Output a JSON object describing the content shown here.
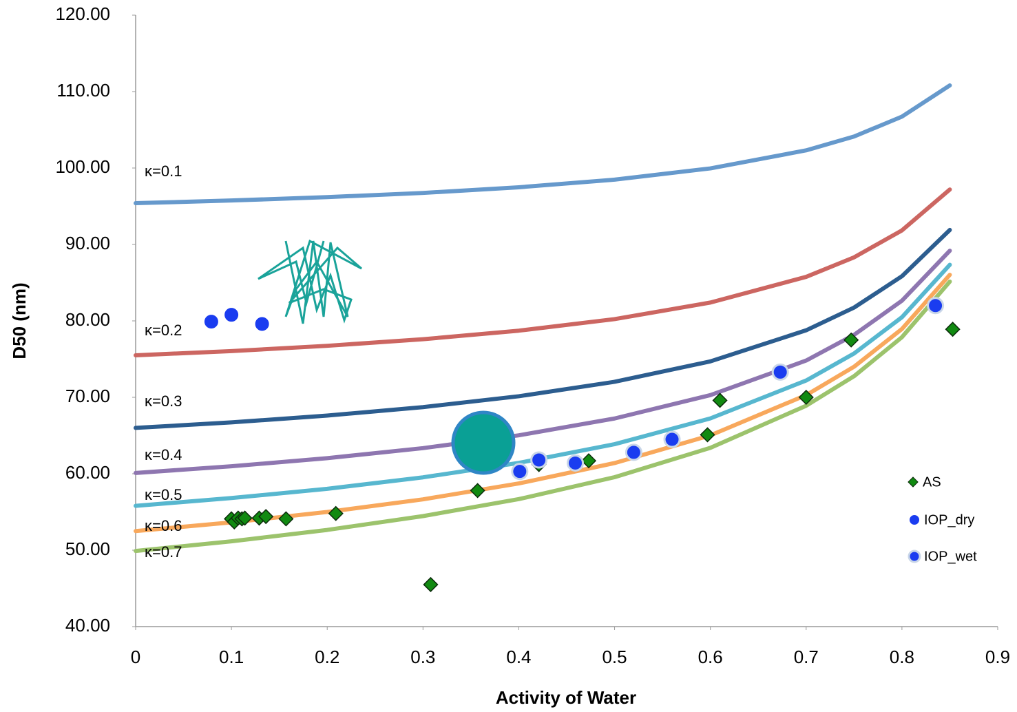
{
  "chart_data": {
    "type": "scatter",
    "xlabel": "Activity of Water",
    "ylabel": "D50 (nm)",
    "xlim": [
      0,
      0.9
    ],
    "xticks": [
      0,
      0.1,
      0.2,
      0.3,
      0.4,
      0.5,
      0.6,
      0.7,
      0.8,
      0.9
    ],
    "ylim": [
      40,
      120
    ],
    "yticks": [
      {
        "value": 40,
        "label": "40.00"
      },
      {
        "value": 50,
        "label": "50.00"
      },
      {
        "value": 60,
        "label": "60.00"
      },
      {
        "value": 70,
        "label": "70.00"
      },
      {
        "value": 80,
        "label": "80.00"
      },
      {
        "value": 90,
        "label": "90.00"
      },
      {
        "value": 100,
        "label": "100.00"
      },
      {
        "value": 110,
        "label": "110.00"
      },
      {
        "value": 120,
        "label": "120.00"
      }
    ],
    "grid": false,
    "legend": "lower right",
    "series": [
      {
        "name": "κ=0.1",
        "type": "line",
        "color": "#6699cc",
        "x": [
          0,
          0.1,
          0.2,
          0.3,
          0.4,
          0.5,
          0.6,
          0.7,
          0.75,
          0.8,
          0.85
        ],
        "values": [
          95.4,
          95.75,
          96.19,
          96.74,
          97.48,
          98.48,
          99.95,
          102.31,
          104.12,
          106.72,
          110.81
        ]
      },
      {
        "name": "κ=0.2",
        "type": "line",
        "color": "#cc6661",
        "x": [
          0,
          0.1,
          0.2,
          0.3,
          0.4,
          0.5,
          0.6,
          0.7,
          0.75,
          0.8,
          0.85
        ],
        "values": [
          75.5,
          76.05,
          76.74,
          77.6,
          78.72,
          80.23,
          82.4,
          85.76,
          88.31,
          91.84,
          97.19
        ]
      },
      {
        "name": "κ=0.3",
        "type": "line",
        "color": "#2c5d8f",
        "x": [
          0,
          0.1,
          0.2,
          0.3,
          0.4,
          0.5,
          0.6,
          0.7,
          0.75,
          0.8,
          0.85
        ],
        "values": [
          66.0,
          66.72,
          67.61,
          68.72,
          70.14,
          72.03,
          74.7,
          78.77,
          81.74,
          85.84,
          91.9
        ]
      },
      {
        "name": "κ=0.4",
        "type": "line",
        "color": "#8e76b0",
        "x": [
          0,
          0.1,
          0.2,
          0.3,
          0.4,
          0.5,
          0.6,
          0.7,
          0.75,
          0.8,
          0.85
        ],
        "values": [
          60.1,
          60.98,
          62.04,
          63.35,
          65.03,
          67.23,
          70.29,
          74.81,
          78.17,
          82.64,
          89.18
        ]
      },
      {
        "name": "κ=0.5",
        "type": "line",
        "color": "#57b7cf",
        "x": [
          0,
          0.1,
          0.2,
          0.3,
          0.4,
          0.5,
          0.6,
          0.7,
          0.75,
          0.8,
          0.85
        ],
        "values": [
          55.8,
          56.82,
          58.03,
          59.53,
          61.42,
          63.87,
          67.24,
          72.2,
          75.73,
          80.48,
          87.34
        ]
      },
      {
        "name": "κ=0.6",
        "type": "line",
        "color": "#f8a85c",
        "x": [
          0,
          0.1,
          0.2,
          0.3,
          0.4,
          0.5,
          0.6,
          0.7,
          0.75,
          0.8,
          0.85
        ],
        "values": [
          52.5,
          53.64,
          55.0,
          56.65,
          58.73,
          61.4,
          65.02,
          70.29,
          74.0,
          78.94,
          86.03
        ]
      },
      {
        "name": "κ=0.7",
        "type": "line",
        "color": "#9cc36c",
        "x": [
          0,
          0.1,
          0.2,
          0.3,
          0.4,
          0.5,
          0.6,
          0.7,
          0.75,
          0.8,
          0.85
        ],
        "values": [
          49.9,
          51.16,
          52.65,
          54.46,
          56.68,
          59.55,
          63.39,
          68.9,
          72.76,
          77.87,
          85.14
        ]
      },
      {
        "name": "AS",
        "type": "scatter",
        "marker": "diamond",
        "color": "#118a11",
        "x": [
          0.1,
          0.103,
          0.107,
          0.111,
          0.114,
          0.129,
          0.136,
          0.157,
          0.209,
          0.308,
          0.357,
          0.421,
          0.473,
          0.597,
          0.61,
          0.7,
          0.747,
          0.853
        ],
        "values": [
          54.1,
          53.7,
          54.2,
          54.1,
          54.2,
          54.2,
          54.4,
          54.1,
          54.8,
          45.5,
          57.8,
          61.2,
          61.7,
          65.1,
          69.6,
          70.0,
          77.5,
          78.9
        ]
      },
      {
        "name": "IOP_dry",
        "type": "scatter",
        "marker": "circle",
        "color": "#1a3cf0",
        "x": [
          0.079,
          0.1,
          0.132
        ],
        "values": [
          79.9,
          80.8,
          79.6
        ]
      },
      {
        "name": "IOP_wet",
        "type": "scatter",
        "marker": "circle-edge",
        "color": "#1a3cf0",
        "x": [
          0.401,
          0.421,
          0.459,
          0.52,
          0.56,
          0.673,
          0.835
        ],
        "values": [
          60.3,
          61.8,
          61.4,
          62.8,
          64.5,
          73.3,
          82.0
        ]
      }
    ]
  }
}
